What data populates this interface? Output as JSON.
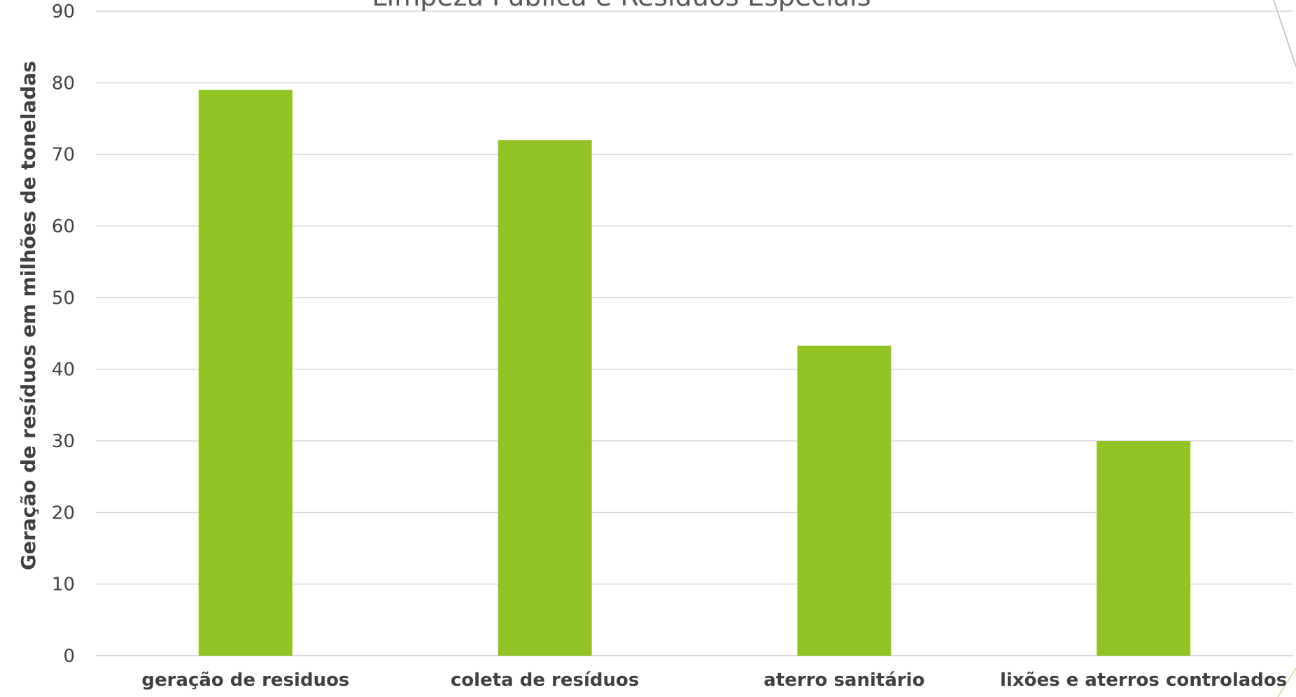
{
  "chart_data": {
    "type": "bar",
    "title": "Limpeza Pública e Resíduos Especiais",
    "xlabel": "",
    "ylabel": "Geração de resíduos em milhões de toneladas",
    "categories": [
      "geração de residuos",
      "coleta de resíduos",
      "aterro sanitário",
      "lixões e aterros controlados"
    ],
    "values": [
      79,
      72,
      43.3,
      30
    ],
    "ylim": [
      0,
      90
    ],
    "yticks": [
      0,
      10,
      20,
      30,
      40,
      50,
      60,
      70,
      80,
      90
    ],
    "grid": true,
    "legend": "none",
    "bar_color": "#93c225"
  }
}
